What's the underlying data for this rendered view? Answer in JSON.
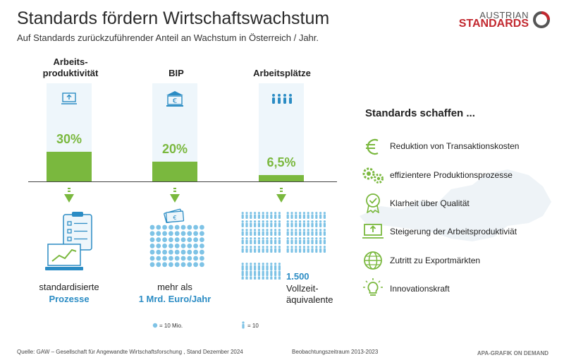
{
  "title": "Standards fördern Wirtschaftswachstum",
  "subtitle": "Auf Standards zurückzuführender Anteil an Wachstum in Österreich / Jahr.",
  "logo": {
    "top": "AUSTRIAN",
    "bottom": "STANDARDS"
  },
  "chart_data": {
    "type": "bar",
    "categories": [
      "Arbeits-\nproduktivität",
      "BIP",
      "Arbeitsplätze"
    ],
    "values": [
      30,
      20,
      6.5
    ],
    "value_labels": [
      "30%",
      "20%",
      "6,5%"
    ],
    "unit": "%",
    "ylim": [
      0,
      100
    ],
    "colors": {
      "bar": "#7ab83e",
      "bar_background": "#eef6fb",
      "accent_blue": "#2b8cc4"
    }
  },
  "columns": [
    {
      "header": "Arbeits-\nproduktivität",
      "caption_line1": "standardisierte",
      "caption_line2": "Prozesse",
      "icon": "laptop-upload-icon"
    },
    {
      "header": "BIP",
      "caption_line1": "mehr als",
      "caption_line2": "1 Mrd. Euro/Jahr",
      "icon": "bank-euro-icon"
    },
    {
      "header": "Arbeitsplätze",
      "caption_line1": "1.500",
      "caption_line2": "Vollzeit-",
      "caption_line3": "äquivalente",
      "icon": "people-icon"
    }
  ],
  "legends": {
    "coins": "= 10 Mio.",
    "people": "= 10"
  },
  "panel": {
    "title": "Standards schaffen ...",
    "items": [
      {
        "label": "Reduktion von Transaktionskosten",
        "icon": "euro-icon"
      },
      {
        "label": "effizientere Produktionsprozesse",
        "icon": "gears-icon"
      },
      {
        "label": "Klarheit über Qualität",
        "icon": "quality-badge-icon"
      },
      {
        "label": "Steigerung der Arbeitsproduktiviät",
        "icon": "laptop-upload-icon"
      },
      {
        "label": "Zutritt zu Exportmärkten",
        "icon": "globe-icon"
      },
      {
        "label": "Innovationskraft",
        "icon": "lightbulb-icon"
      }
    ]
  },
  "footer": {
    "source": "Quelle: GAW – Gesellschaft für Angewandte Wirtschaftsforschung , Stand Dezember 2024",
    "period": "Beobachtungszeitraum 2013-2023",
    "credit": "APA-GRAFIK ON DEMAND"
  }
}
